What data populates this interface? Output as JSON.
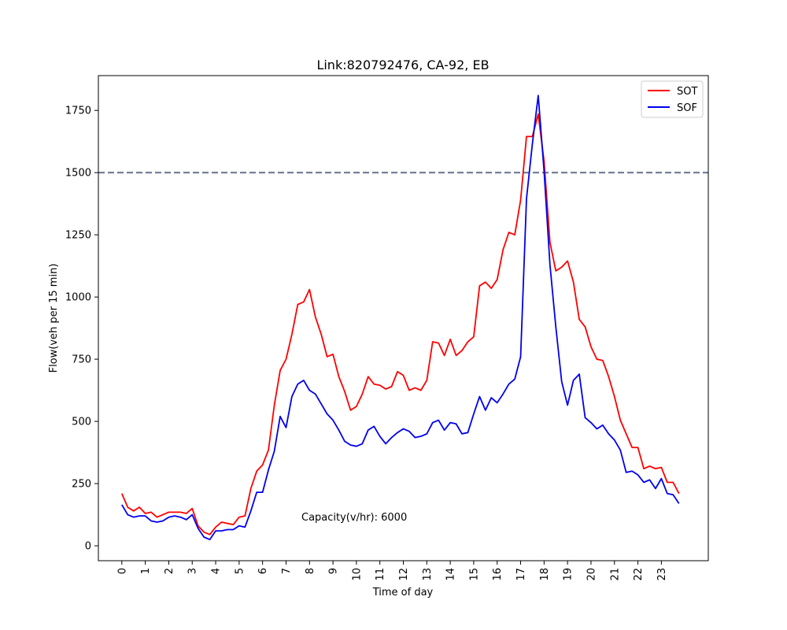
{
  "chart_data": {
    "type": "line",
    "title": "Link:820792476, CA-92, EB",
    "xlabel": "Time of day",
    "ylabel": "Flow(veh per 15 min)",
    "annotation": "Capacity(v/hr): 6000",
    "x_ticks": [
      "0",
      "1",
      "2",
      "3",
      "4",
      "5",
      "6",
      "7",
      "8",
      "9",
      "10",
      "11",
      "12",
      "13",
      "14",
      "15",
      "16",
      "17",
      "18",
      "19",
      "20",
      "21",
      "22",
      "23"
    ],
    "y_ticks": [
      0,
      250,
      500,
      750,
      1000,
      1250,
      1500,
      1750
    ],
    "xlim": [
      -1,
      25
    ],
    "ylim": [
      -60,
      1890
    ],
    "reference_line": {
      "y": 1500,
      "style": "dashed",
      "color": "#6c7a93"
    },
    "legend_position": "top-right",
    "grid": false,
    "x": [
      0,
      0.25,
      0.5,
      0.75,
      1,
      1.25,
      1.5,
      1.75,
      2,
      2.25,
      2.5,
      2.75,
      3,
      3.25,
      3.5,
      3.75,
      4,
      4.25,
      4.5,
      4.75,
      5,
      5.25,
      5.5,
      5.75,
      6,
      6.25,
      6.5,
      6.75,
      7,
      7.25,
      7.5,
      7.75,
      8,
      8.25,
      8.5,
      8.75,
      9,
      9.25,
      9.5,
      9.75,
      10,
      10.25,
      10.5,
      10.75,
      11,
      11.25,
      11.5,
      11.75,
      12,
      12.25,
      12.5,
      12.75,
      13,
      13.25,
      13.5,
      13.75,
      14,
      14.25,
      14.5,
      14.75,
      15,
      15.25,
      15.5,
      15.75,
      16,
      16.25,
      16.5,
      16.75,
      17,
      17.25,
      17.5,
      17.75,
      18,
      18.25,
      18.5,
      18.75,
      19,
      19.25,
      19.5,
      19.75,
      20,
      20.25,
      20.5,
      20.75,
      21,
      21.25,
      21.5,
      21.75,
      22,
      22.25,
      22.5,
      22.75,
      23,
      23.25,
      23.5,
      23.75
    ],
    "series": [
      {
        "name": "SOT",
        "color": "#ff0000",
        "values": [
          210,
          155,
          140,
          155,
          130,
          135,
          115,
          125,
          135,
          135,
          135,
          130,
          150,
          80,
          55,
          45,
          75,
          95,
          90,
          85,
          115,
          120,
          230,
          300,
          325,
          385,
          565,
          705,
          750,
          850,
          970,
          980,
          1030,
          920,
          850,
          760,
          770,
          680,
          620,
          545,
          560,
          610,
          680,
          650,
          645,
          630,
          640,
          700,
          685,
          625,
          635,
          625,
          665,
          820,
          815,
          765,
          830,
          765,
          785,
          820,
          840,
          1045,
          1060,
          1035,
          1070,
          1190,
          1260,
          1250,
          1390,
          1645,
          1645,
          1735,
          1545,
          1220,
          1105,
          1120,
          1145,
          1060,
          910,
          880,
          800,
          750,
          745,
          680,
          600,
          505,
          450,
          395,
          395,
          310,
          320,
          310,
          315,
          255,
          255,
          210
        ]
      },
      {
        "name": "SOF",
        "color": "#0000ee",
        "values": [
          165,
          125,
          115,
          120,
          120,
          100,
          95,
          100,
          115,
          120,
          115,
          105,
          125,
          70,
          35,
          25,
          60,
          60,
          65,
          65,
          80,
          75,
          140,
          215,
          215,
          305,
          380,
          520,
          475,
          600,
          650,
          665,
          625,
          610,
          570,
          530,
          505,
          465,
          420,
          405,
          400,
          410,
          465,
          480,
          440,
          410,
          435,
          455,
          470,
          460,
          435,
          440,
          450,
          495,
          505,
          465,
          495,
          490,
          450,
          455,
          530,
          600,
          545,
          595,
          575,
          610,
          650,
          670,
          760,
          1395,
          1615,
          1810,
          1505,
          1130,
          880,
          660,
          565,
          665,
          690,
          515,
          495,
          470,
          485,
          450,
          425,
          385,
          295,
          300,
          285,
          255,
          265,
          230,
          270,
          210,
          205,
          170
        ]
      }
    ]
  }
}
